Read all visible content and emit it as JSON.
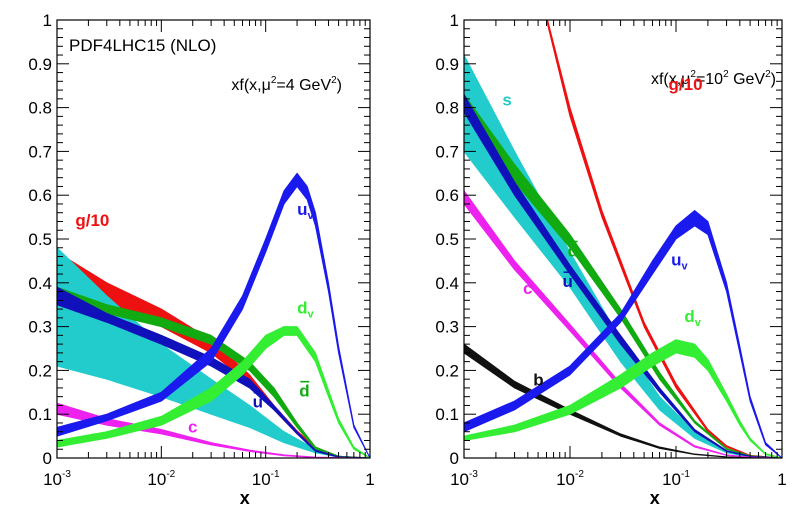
{
  "chart_data": [
    {
      "type": "area",
      "panel": "left",
      "title": "PDF4LHC15 (NLO)",
      "annotation": {
        "text": "xf(x,μ",
        "sup": "2",
        "text2": "=4 GeV",
        "sup2": "2",
        "close": ")"
      },
      "xlabel": "x",
      "xscale": "log",
      "xlim": [
        0.001,
        1
      ],
      "ylim": [
        0,
        1
      ],
      "yticks": [
        0,
        0.1,
        0.2,
        0.3,
        0.4,
        0.5,
        0.6,
        0.7,
        0.8,
        0.9,
        1
      ],
      "ytick_labels": [
        "0",
        "0.1",
        "0.2",
        "0.3",
        "0.4",
        "0.5",
        "0.6",
        "0.7",
        "0.8",
        "0.9",
        "1"
      ],
      "xticks": [
        0.001,
        0.01,
        0.1,
        1
      ],
      "xtick_labels": [
        {
          "base": "10",
          "exp": "-3"
        },
        {
          "base": "10",
          "exp": "-2"
        },
        {
          "base": "10",
          "exp": "-1"
        },
        {
          "base": "1",
          "exp": ""
        }
      ],
      "series": [
        {
          "name": "g/10",
          "label": "g/10",
          "sub": "",
          "bar": false,
          "color": "#ee1111",
          "x": [
            0.001,
            0.003,
            0.01,
            0.03,
            0.07,
            0.12,
            0.2,
            0.3,
            0.5,
            1
          ],
          "lo": [
            0.38,
            0.35,
            0.3,
            0.24,
            0.17,
            0.11,
            0.055,
            0.02,
            0.003,
            0
          ],
          "hi": [
            0.47,
            0.4,
            0.34,
            0.27,
            0.19,
            0.12,
            0.062,
            0.025,
            0.004,
            0
          ]
        },
        {
          "name": "s",
          "label": "",
          "sub": "",
          "bar": false,
          "color": "#22cccc",
          "x": [
            0.001,
            0.003,
            0.01,
            0.03,
            0.07,
            0.15,
            0.3,
            0.5,
            1
          ],
          "lo": [
            0.21,
            0.18,
            0.14,
            0.1,
            0.07,
            0.035,
            0.012,
            0.002,
            0
          ],
          "hi": [
            0.48,
            0.37,
            0.26,
            0.18,
            0.12,
            0.06,
            0.02,
            0.004,
            0
          ]
        },
        {
          "name": "d_bar",
          "label": "d",
          "sub": "",
          "bar": true,
          "color": "#11aa11",
          "x": [
            0.001,
            0.003,
            0.01,
            0.03,
            0.07,
            0.12,
            0.2,
            0.3,
            0.5,
            1
          ],
          "lo": [
            0.35,
            0.33,
            0.3,
            0.26,
            0.2,
            0.14,
            0.07,
            0.02,
            0.003,
            0
          ],
          "hi": [
            0.39,
            0.35,
            0.32,
            0.28,
            0.22,
            0.16,
            0.08,
            0.025,
            0.004,
            0
          ]
        },
        {
          "name": "u_bar",
          "label": "u",
          "sub": "",
          "bar": true,
          "color": "#1111bb",
          "x": [
            0.001,
            0.003,
            0.01,
            0.03,
            0.07,
            0.12,
            0.2,
            0.3,
            0.5,
            1
          ],
          "lo": [
            0.35,
            0.31,
            0.26,
            0.21,
            0.16,
            0.11,
            0.055,
            0.015,
            0.002,
            0
          ],
          "hi": [
            0.39,
            0.33,
            0.28,
            0.23,
            0.18,
            0.12,
            0.06,
            0.018,
            0.003,
            0
          ]
        },
        {
          "name": "c",
          "label": "c",
          "sub": "",
          "bar": false,
          "color": "#ee22ee",
          "x": [
            0.001,
            0.003,
            0.01,
            0.03,
            0.07,
            0.15,
            0.3,
            1
          ],
          "lo": [
            0.1,
            0.075,
            0.055,
            0.03,
            0.015,
            0.005,
            0.001,
            0
          ],
          "hi": [
            0.125,
            0.09,
            0.065,
            0.035,
            0.018,
            0.007,
            0.002,
            0
          ]
        },
        {
          "name": "d_v",
          "label": "d",
          "sub": "v",
          "bar": false,
          "color": "#33ee33",
          "x": [
            0.001,
            0.003,
            0.01,
            0.03,
            0.06,
            0.1,
            0.15,
            0.2,
            0.3,
            0.4,
            0.5,
            0.7,
            1
          ],
          "lo": [
            0.025,
            0.045,
            0.075,
            0.13,
            0.19,
            0.25,
            0.28,
            0.28,
            0.22,
            0.14,
            0.08,
            0.02,
            0
          ],
          "hi": [
            0.04,
            0.06,
            0.095,
            0.16,
            0.22,
            0.28,
            0.3,
            0.3,
            0.24,
            0.155,
            0.09,
            0.025,
            0
          ]
        },
        {
          "name": "u_v",
          "label": "u",
          "sub": "v",
          "bar": false,
          "color": "#1a1aee",
          "x": [
            0.001,
            0.003,
            0.01,
            0.03,
            0.06,
            0.1,
            0.15,
            0.2,
            0.25,
            0.3,
            0.4,
            0.5,
            0.7,
            1
          ],
          "lo": [
            0.05,
            0.085,
            0.13,
            0.22,
            0.34,
            0.47,
            0.58,
            0.62,
            0.59,
            0.53,
            0.38,
            0.24,
            0.07,
            0
          ],
          "hi": [
            0.07,
            0.1,
            0.15,
            0.25,
            0.37,
            0.5,
            0.61,
            0.65,
            0.62,
            0.56,
            0.4,
            0.255,
            0.075,
            0
          ]
        }
      ],
      "labels": [
        {
          "series": "g/10",
          "x": 0.0015,
          "y": 0.53
        },
        {
          "series": "u_v",
          "x": 0.2,
          "y": 0.555
        },
        {
          "series": "d_v",
          "x": 0.2,
          "y": 0.33
        },
        {
          "series": "d_bar",
          "x": 0.21,
          "y": 0.14
        },
        {
          "series": "u_bar",
          "x": 0.075,
          "y": 0.115
        },
        {
          "series": "c",
          "x": 0.018,
          "y": 0.058
        }
      ]
    },
    {
      "type": "area",
      "panel": "right",
      "title": "",
      "annotation": {
        "text": "xf(x,μ",
        "sup": "2",
        "text2": "=10",
        "sup2": "2",
        "text3": " GeV",
        "sup3": "2",
        "close": ")"
      },
      "xlabel": "x",
      "xscale": "log",
      "xlim": [
        0.001,
        1
      ],
      "ylim": [
        0,
        1
      ],
      "yticks": [
        0,
        0.1,
        0.2,
        0.3,
        0.4,
        0.5,
        0.6,
        0.7,
        0.8,
        0.9,
        1
      ],
      "ytick_labels": [
        "0",
        "0.1",
        "0.2",
        "0.3",
        "0.4",
        "0.5",
        "0.6",
        "0.7",
        "0.8",
        "0.9",
        "1"
      ],
      "xticks": [
        0.001,
        0.01,
        0.1,
        1
      ],
      "xtick_labels": [
        {
          "base": "10",
          "exp": "-3"
        },
        {
          "base": "10",
          "exp": "-2"
        },
        {
          "base": "10",
          "exp": "-1"
        },
        {
          "base": "1",
          "exp": ""
        }
      ],
      "series": [
        {
          "name": "g/10",
          "label": "g/10",
          "sub": "",
          "bar": false,
          "color": "#ee1111",
          "x": [
            0.006,
            0.01,
            0.02,
            0.05,
            0.1,
            0.2,
            0.3,
            0.5,
            1
          ],
          "lo": [
            1.0,
            0.78,
            0.55,
            0.3,
            0.16,
            0.06,
            0.025,
            0.005,
            0
          ],
          "hi": [
            1.01,
            0.8,
            0.565,
            0.31,
            0.17,
            0.065,
            0.028,
            0.006,
            0
          ]
        },
        {
          "name": "s",
          "label": "s",
          "sub": "",
          "bar": false,
          "color": "#22cccc",
          "x": [
            0.001,
            0.003,
            0.01,
            0.03,
            0.07,
            0.15,
            0.3,
            0.5,
            1
          ],
          "lo": [
            0.7,
            0.55,
            0.39,
            0.22,
            0.11,
            0.045,
            0.012,
            0.002,
            0
          ],
          "hi": [
            0.92,
            0.7,
            0.47,
            0.27,
            0.14,
            0.06,
            0.016,
            0.003,
            0
          ]
        },
        {
          "name": "d_bar",
          "label": "d",
          "sub": "",
          "bar": true,
          "color": "#11aa11",
          "x": [
            0.001,
            0.003,
            0.01,
            0.03,
            0.07,
            0.15,
            0.3,
            0.5,
            1
          ],
          "lo": [
            0.79,
            0.63,
            0.48,
            0.32,
            0.18,
            0.08,
            0.02,
            0.004,
            0
          ],
          "hi": [
            0.83,
            0.67,
            0.51,
            0.34,
            0.195,
            0.085,
            0.022,
            0.005,
            0
          ]
        },
        {
          "name": "u_bar",
          "label": "u",
          "sub": "",
          "bar": true,
          "color": "#1111bb",
          "x": [
            0.001,
            0.003,
            0.01,
            0.03,
            0.07,
            0.15,
            0.3,
            0.5,
            1
          ],
          "lo": [
            0.79,
            0.6,
            0.42,
            0.26,
            0.15,
            0.06,
            0.015,
            0.003,
            0
          ],
          "hi": [
            0.83,
            0.63,
            0.44,
            0.28,
            0.16,
            0.065,
            0.017,
            0.004,
            0
          ]
        },
        {
          "name": "c",
          "label": "c",
          "sub": "",
          "bar": false,
          "color": "#ee22ee",
          "x": [
            0.001,
            0.003,
            0.01,
            0.03,
            0.07,
            0.15,
            0.3,
            0.5,
            1
          ],
          "lo": [
            0.58,
            0.43,
            0.29,
            0.16,
            0.075,
            0.025,
            0.006,
            0.001,
            0
          ],
          "hi": [
            0.61,
            0.45,
            0.305,
            0.17,
            0.08,
            0.028,
            0.007,
            0.002,
            0
          ]
        },
        {
          "name": "b",
          "label": "b",
          "sub": "",
          "bar": false,
          "color": "#111111",
          "x": [
            0.001,
            0.003,
            0.01,
            0.03,
            0.07,
            0.15,
            0.3,
            0.5,
            1
          ],
          "lo": [
            0.24,
            0.16,
            0.1,
            0.05,
            0.022,
            0.008,
            0.002,
            0.0005,
            0
          ],
          "hi": [
            0.26,
            0.175,
            0.11,
            0.055,
            0.025,
            0.009,
            0.0025,
            0.0006,
            0
          ]
        },
        {
          "name": "d_v",
          "label": "d",
          "sub": "v",
          "bar": false,
          "color": "#33ee33",
          "x": [
            0.001,
            0.003,
            0.01,
            0.03,
            0.06,
            0.1,
            0.15,
            0.2,
            0.3,
            0.4,
            0.5,
            0.7,
            1
          ],
          "lo": [
            0.04,
            0.06,
            0.1,
            0.16,
            0.21,
            0.24,
            0.23,
            0.2,
            0.13,
            0.075,
            0.04,
            0.008,
            0
          ],
          "hi": [
            0.05,
            0.075,
            0.12,
            0.19,
            0.24,
            0.27,
            0.26,
            0.225,
            0.145,
            0.085,
            0.045,
            0.01,
            0
          ]
        },
        {
          "name": "u_v",
          "label": "u",
          "sub": "v",
          "bar": false,
          "color": "#1a1aee",
          "x": [
            0.001,
            0.003,
            0.01,
            0.03,
            0.06,
            0.1,
            0.15,
            0.2,
            0.3,
            0.4,
            0.5,
            0.7,
            1
          ],
          "lo": [
            0.06,
            0.11,
            0.19,
            0.31,
            0.42,
            0.5,
            0.53,
            0.51,
            0.38,
            0.24,
            0.13,
            0.03,
            0
          ],
          "hi": [
            0.08,
            0.13,
            0.21,
            0.33,
            0.45,
            0.53,
            0.565,
            0.54,
            0.4,
            0.255,
            0.14,
            0.035,
            0
          ]
        }
      ],
      "labels": [
        {
          "series": "s",
          "x": 0.0023,
          "y": 0.805
        },
        {
          "series": "g/10",
          "x": 0.085,
          "y": 0.84
        },
        {
          "series": "u_v",
          "x": 0.09,
          "y": 0.44
        },
        {
          "series": "d_v",
          "x": 0.12,
          "y": 0.31
        },
        {
          "series": "d_bar",
          "x": 0.0095,
          "y": 0.46
        },
        {
          "series": "u_bar",
          "x": 0.0085,
          "y": 0.39
        },
        {
          "series": "c",
          "x": 0.0036,
          "y": 0.375
        },
        {
          "series": "b",
          "x": 0.0045,
          "y": 0.165
        }
      ]
    }
  ]
}
